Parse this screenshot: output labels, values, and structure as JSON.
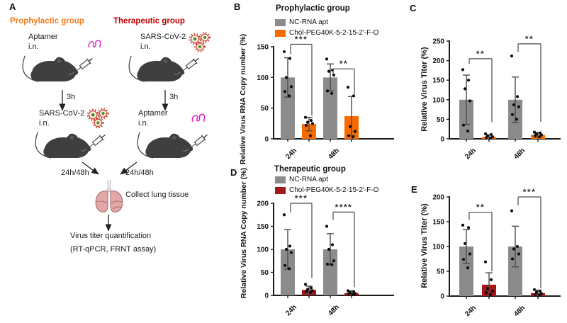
{
  "panel_a": {
    "letter": "A",
    "groups": {
      "prophylactic": {
        "label": "Prophylactic group",
        "color": "#F47C20"
      },
      "therapeutic": {
        "label": "Therapeutic group",
        "color": "#C00000"
      }
    },
    "prophylactic": {
      "step1": "Aptamer",
      "step1_route": "i.n.",
      "interval": "3h",
      "step2": "SARS-CoV-2",
      "step2_route": "i.n.",
      "harvest": "24h/48h"
    },
    "therapeutic": {
      "step1": "SARS-CoV-2",
      "step1_route": "i.n.",
      "interval": "3h",
      "step2": "Aptamer",
      "step2_route": "i.n.",
      "harvest": "24h/48h"
    },
    "collect": "Collect lung tissue",
    "quantification_line1": "Virus titer quantification",
    "quantification_line2": "(RT-qPCR, FRNT assay)",
    "icons": {
      "mouse": "mouse-with-syringe-icon",
      "virus": "sars-cov-2-virion-icon",
      "aptamer": "aptamer-squiggle-icon",
      "lungs": "lungs-icon"
    },
    "colors": {
      "mouse": "#3F3F3F",
      "aptamer": "#E318C8",
      "virus_ring": "#C9352B",
      "virus_core": "#4C8A3D",
      "lung_fill": "#E3A7A7",
      "lung_stroke": "#A97070"
    }
  },
  "chart_data": {
    "b": {
      "type": "bar",
      "letter": "B",
      "title": "Prophylactic group",
      "ylabel": "Relative Virus RNA Copy number (%)",
      "ylim": [
        0,
        150
      ],
      "yticks": [
        0,
        50,
        100,
        150
      ],
      "categories": [
        "24h",
        "48h"
      ],
      "series": [
        {
          "name": "NC-RNA apt",
          "color": "#8B8B8B",
          "values": [
            100,
            100
          ],
          "errors": [
            32,
            22
          ],
          "points": [
            [
              142,
              131,
              100,
              85,
              77,
              70
            ],
            [
              130,
              112,
              110,
              104,
              78,
              74
            ]
          ]
        },
        {
          "name": "Chol-PEG40K-5-2-15-2'-F-O",
          "color": "#F66A00",
          "values": [
            24,
            37
          ],
          "errors": [
            11,
            32
          ],
          "points": [
            [
              35,
              30,
              27,
              25,
              22,
              5
            ],
            [
              84,
              70,
              20,
              12,
              5,
              3
            ]
          ]
        }
      ],
      "significance": [
        {
          "category": 0,
          "label": "***",
          "top": 154,
          "left_end": 138,
          "right_end": 38
        },
        {
          "category": 1,
          "label": "**",
          "top": 114,
          "left_end": 104,
          "right_end": 73
        }
      ]
    },
    "c": {
      "type": "bar",
      "letter": "C",
      "title": "",
      "ylabel": "Relative Virus Titer (%)",
      "ylim": [
        0,
        250
      ],
      "yticks": [
        0,
        50,
        100,
        150,
        200,
        250
      ],
      "categories": [
        "24h",
        "48h"
      ],
      "series": [
        {
          "name": "NC-RNA apt",
          "color": "#8B8B8B",
          "values": [
            100,
            100
          ],
          "errors": [
            63,
            58
          ],
          "points": [
            [
              177,
              150,
              128,
              97,
              35,
              20
            ],
            [
              212,
              108,
              87,
              82,
              62,
              50
            ]
          ]
        },
        {
          "name": "Chol-PEG40K-5-2-15-2'-F-O",
          "color": "#F66A00",
          "values": [
            5,
            10
          ],
          "errors": [
            5,
            6
          ],
          "points": [
            [
              13,
              11,
              8,
              5,
              3,
              2
            ],
            [
              17,
              15,
              12,
              10,
              8,
              5
            ]
          ]
        }
      ],
      "significance": [
        {
          "category": 0,
          "label": "**",
          "top": 205,
          "left_end": 192,
          "right_end": 43
        },
        {
          "category": 1,
          "label": "**",
          "top": 243,
          "left_end": 222,
          "right_end": 43
        }
      ]
    },
    "d": {
      "type": "bar",
      "letter": "D",
      "title": "Therapeutic group",
      "ylabel": "Relative Virus RNA Copy number (%)",
      "ylim": [
        0,
        200
      ],
      "yticks": [
        0,
        50,
        100,
        150,
        200
      ],
      "categories": [
        "24h",
        "48h"
      ],
      "series": [
        {
          "name": "NC-RNA apt",
          "color": "#8B8B8B",
          "values": [
            100,
            100
          ],
          "errors": [
            43,
            34
          ],
          "points": [
            [
              175,
              107,
              100,
              93,
              65,
              58
            ],
            [
              150,
              110,
              100,
              75,
              68,
              67
            ]
          ]
        },
        {
          "name": "Chol-PEG40K-5-2-15-2'-F-O",
          "color": "#A31818",
          "values": [
            12,
            5
          ],
          "errors": [
            8,
            5
          ],
          "points": [
            [
              24,
              16,
              13,
              10,
              8,
              6
            ],
            [
              10,
              8,
              6,
              4,
              3,
              2
            ]
          ]
        }
      ],
      "significance": [
        {
          "category": 0,
          "label": "***",
          "top": 200,
          "left_end": 180,
          "right_end": 38
        },
        {
          "category": 1,
          "label": "****",
          "top": 181,
          "left_end": 164,
          "right_end": 18
        }
      ]
    },
    "e": {
      "type": "bar",
      "letter": "E",
      "title": "",
      "ylabel": "Relative Virus Titer (%)",
      "ylim": [
        0,
        200
      ],
      "yticks": [
        0,
        50,
        100,
        150,
        200
      ],
      "categories": [
        "24h",
        "48h"
      ],
      "series": [
        {
          "name": "NC-RNA apt",
          "color": "#8B8B8B",
          "values": [
            100,
            100
          ],
          "errors": [
            34,
            41
          ],
          "points": [
            [
              143,
              138,
              106,
              85,
              74,
              57
            ],
            [
              172,
              100,
              95,
              85,
              75
            ]
          ]
        },
        {
          "name": "Chol-PEG40K-5-2-15-2'-F-O",
          "color": "#A31818",
          "values": [
            23,
            6
          ],
          "errors": [
            24,
            6
          ],
          "points": [
            [
              69,
              33,
              15,
              10,
              7,
              3
            ],
            [
              13,
              10,
              8,
              5,
              3,
              2
            ]
          ]
        }
      ],
      "significance": [
        {
          "category": 0,
          "label": "**",
          "top": 169,
          "left_end": 154,
          "right_end": 50
        },
        {
          "category": 1,
          "label": "***",
          "top": 200,
          "left_end": 183,
          "right_end": 16
        }
      ]
    }
  }
}
